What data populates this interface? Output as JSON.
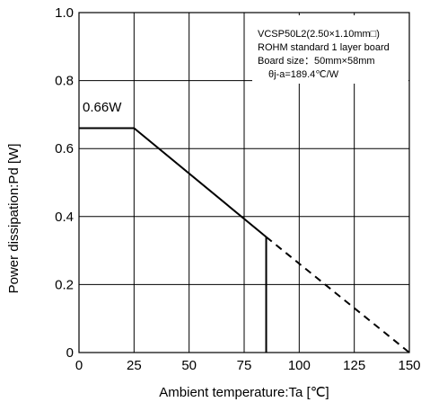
{
  "chart_data": {
    "type": "line",
    "xlabel": "Ambient temperature:Ta [℃]",
    "ylabel": "Power dissipation:Pd [W]",
    "xlim": [
      0,
      150
    ],
    "ylim": [
      0,
      1.0
    ],
    "xticks": [
      "0",
      "25",
      "50",
      "75",
      "100",
      "125",
      "150"
    ],
    "xtick_values": [
      0,
      25,
      50,
      75,
      100,
      125,
      150
    ],
    "yticks": [
      "0",
      "0.2",
      "0.4",
      "0.6",
      "0.8",
      "1.0"
    ],
    "ytick_values": [
      0,
      0.2,
      0.4,
      0.6,
      0.8,
      1.0
    ],
    "grid": true,
    "series": [
      {
        "style": "solid",
        "color": "#000000",
        "points": [
          [
            0,
            0.66
          ],
          [
            25,
            0.66
          ],
          [
            85,
            0.34
          ]
        ]
      },
      {
        "style": "dashed",
        "color": "#000000",
        "points": [
          [
            85,
            0.34
          ],
          [
            150,
            0
          ]
        ]
      }
    ],
    "vertical_marker": {
      "x": 85,
      "y_from": 0,
      "y_to": 0.34
    },
    "annotations": {
      "peak_label": "0.66W",
      "notes": [
        "VCSP50L2(2.50×1.10mm□)",
        "ROHM standard 1 layer board",
        "Board size：50mm×58mm",
        "θj-a=189.4℃/W"
      ]
    }
  }
}
